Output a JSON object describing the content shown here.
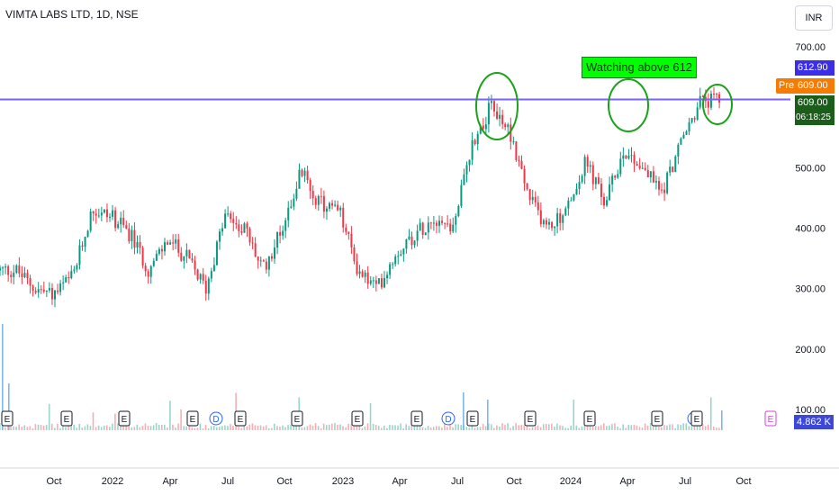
{
  "header": {
    "title": "VIMTA LABS LTD, 1D, NSE",
    "currency": "INR"
  },
  "price_tags": {
    "level_label": "612.90",
    "pre_badge": "Pre",
    "pre_value": "609.00",
    "last_value": "609.00",
    "countdown": "06:18:25"
  },
  "annotation": "Watching above 612",
  "volume_label": "4.862 K",
  "events": [
    {
      "type": "E",
      "x_label": "2021-08"
    },
    {
      "type": "E",
      "x_label": "2021-11"
    },
    {
      "type": "E",
      "x_label": "2022-02"
    },
    {
      "type": "E",
      "x_label": "2022-05"
    },
    {
      "type": "D",
      "x_label": "2022-06"
    },
    {
      "type": "E",
      "x_label": "2022-08"
    },
    {
      "type": "E",
      "x_label": "2022-11"
    },
    {
      "type": "E",
      "x_label": "2023-02"
    },
    {
      "type": "E",
      "x_label": "2023-05"
    },
    {
      "type": "D",
      "x_label": "2023-06"
    },
    {
      "type": "E",
      "x_label": "2023-08"
    },
    {
      "type": "E",
      "x_label": "2023-11"
    },
    {
      "type": "E",
      "x_label": "2024-02"
    },
    {
      "type": "E",
      "x_label": "2024-05"
    },
    {
      "type": "D",
      "x_label": "2024-06"
    },
    {
      "type": "E",
      "x_label": "2024-08"
    },
    {
      "type": "E",
      "x_label": "2024-11"
    }
  ],
  "colors": {
    "up": "#26a69a",
    "up_candle": "#089981",
    "down_candle": "#f23645",
    "hline": "#7b61ff",
    "annotation_bg": "#00ff00",
    "circle": "#1aa31a",
    "level_bg": "#3c2ee8",
    "pre_bg": "#f57c00",
    "last_bg": "#1a5e1a"
  },
  "chart_data": {
    "type": "candlestick",
    "title": "VIMTA LABS LTD, 1D, NSE",
    "y_ticks": [
      100,
      200,
      300,
      400,
      500,
      700
    ],
    "y_tick_labels": [
      "100.00",
      "200.00",
      "300.00",
      "400.00",
      "500.00",
      "700.00"
    ],
    "ylim": [
      100,
      720
    ],
    "x_ticks": [
      "Oct",
      "2022",
      "Apr",
      "Jul",
      "Oct",
      "2023",
      "Apr",
      "Jul",
      "Oct",
      "2024",
      "Apr",
      "Jul",
      "Oct"
    ],
    "horizontal_line": 612.9,
    "price_path": [
      [
        "2021-08",
        330
      ],
      [
        "2021-09",
        300
      ],
      [
        "2021-10",
        290
      ],
      [
        "2021-11",
        320
      ],
      [
        "2021-12",
        430
      ],
      [
        "2022-01",
        420
      ],
      [
        "2022-02",
        390
      ],
      [
        "2022-03",
        330
      ],
      [
        "2022-04",
        380
      ],
      [
        "2022-05",
        350
      ],
      [
        "2022-06",
        300
      ],
      [
        "2022-07",
        420
      ],
      [
        "2022-08",
        400
      ],
      [
        "2022-09",
        330
      ],
      [
        "2022-10",
        400
      ],
      [
        "2022-11",
        495
      ],
      [
        "2022-12",
        440
      ],
      [
        "2023-01",
        430
      ],
      [
        "2023-02",
        330
      ],
      [
        "2023-03",
        300
      ],
      [
        "2023-04",
        360
      ],
      [
        "2023-05",
        390
      ],
      [
        "2023-06",
        420
      ],
      [
        "2023-07",
        400
      ],
      [
        "2023-08",
        540
      ],
      [
        "2023-09",
        600
      ],
      [
        "2023-10",
        560
      ],
      [
        "2023-11",
        450
      ],
      [
        "2023-12",
        400
      ],
      [
        "2024-01",
        430
      ],
      [
        "2024-02",
        510
      ],
      [
        "2024-03",
        440
      ],
      [
        "2024-04",
        530
      ],
      [
        "2024-05",
        500
      ],
      [
        "2024-06",
        460
      ],
      [
        "2024-07",
        540
      ],
      [
        "2024-08",
        609
      ]
    ],
    "volume": "4.862 K"
  }
}
